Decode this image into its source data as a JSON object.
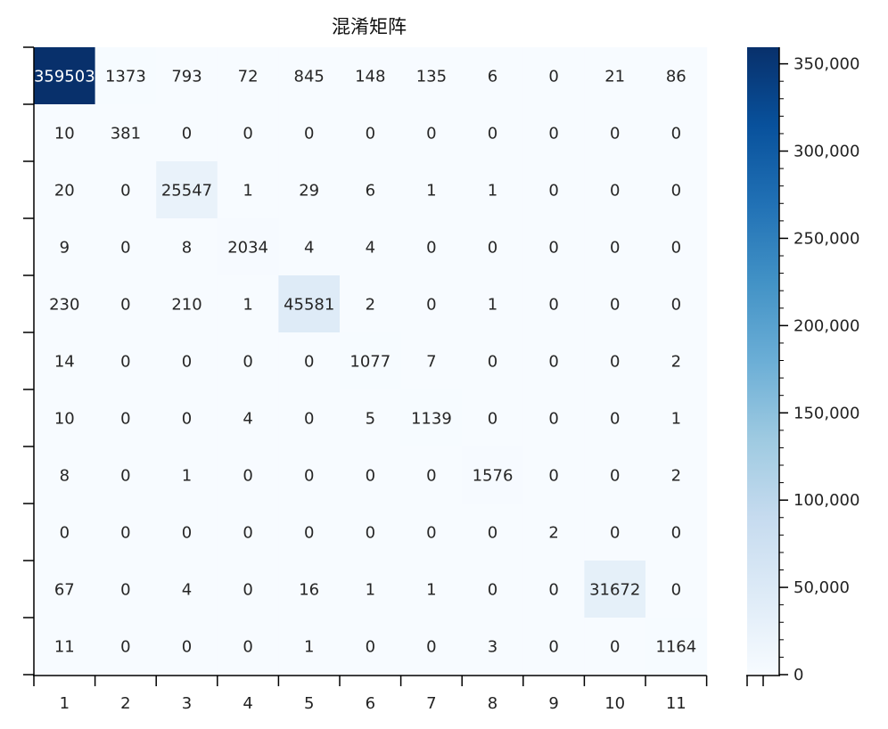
{
  "chart_data": {
    "type": "heatmap",
    "title": "混淆矩阵",
    "x_labels": [
      "1",
      "2",
      "3",
      "4",
      "5",
      "6",
      "7",
      "8",
      "9",
      "10",
      "11"
    ],
    "y_labels": [
      "",
      "",
      "",
      "",
      "",
      "",
      "",
      "",
      "",
      "",
      ""
    ],
    "matrix": [
      [
        359503,
        1373,
        793,
        72,
        845,
        148,
        135,
        6,
        0,
        21,
        86
      ],
      [
        10,
        381,
        0,
        0,
        0,
        0,
        0,
        0,
        0,
        0,
        0
      ],
      [
        20,
        0,
        25547,
        1,
        29,
        6,
        1,
        1,
        0,
        0,
        0
      ],
      [
        9,
        0,
        8,
        2034,
        4,
        4,
        0,
        0,
        0,
        0,
        0
      ],
      [
        230,
        0,
        210,
        1,
        45581,
        2,
        0,
        1,
        0,
        0,
        0
      ],
      [
        14,
        0,
        0,
        0,
        0,
        1077,
        7,
        0,
        0,
        0,
        2
      ],
      [
        10,
        0,
        0,
        4,
        0,
        5,
        1139,
        0,
        0,
        0,
        1
      ],
      [
        8,
        0,
        1,
        0,
        0,
        0,
        0,
        1576,
        0,
        0,
        2
      ],
      [
        0,
        0,
        0,
        0,
        0,
        0,
        0,
        0,
        2,
        0,
        0
      ],
      [
        67,
        0,
        4,
        0,
        16,
        1,
        1,
        0,
        0,
        31672,
        0
      ],
      [
        11,
        0,
        0,
        0,
        1,
        0,
        0,
        3,
        0,
        0,
        1164
      ]
    ],
    "colormap": "Blues",
    "color_range": [
      0,
      359503
    ],
    "colorbar": {
      "ticks": [
        0,
        50000,
        100000,
        150000,
        200000,
        250000,
        300000,
        350000
      ],
      "tick_labels": [
        "0",
        "50,000",
        "100,000",
        "150,000",
        "200,000",
        "250,000",
        "300,000",
        "350,000"
      ]
    }
  }
}
